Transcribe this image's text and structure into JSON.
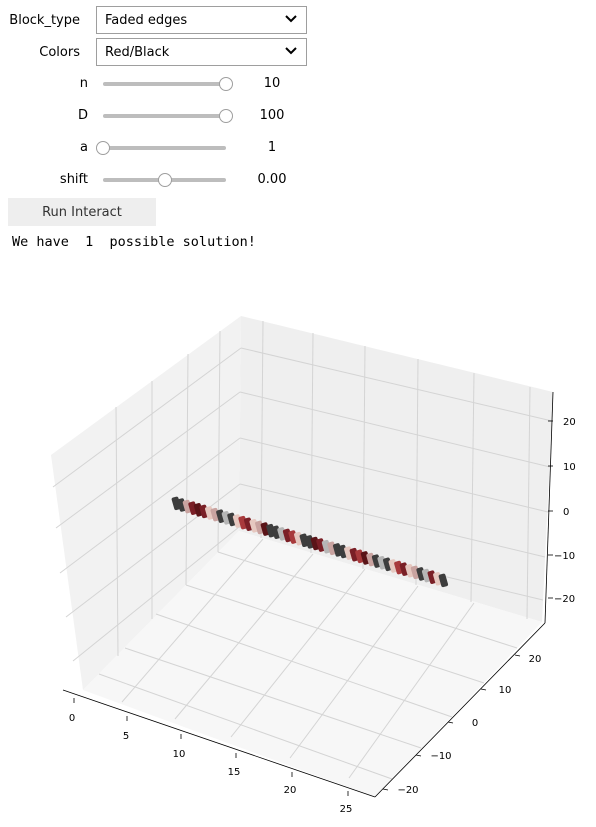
{
  "controls": {
    "block_type": {
      "label": "Block_type",
      "value": "Faded edges"
    },
    "colors": {
      "label": "Colors",
      "value": "Red/Black"
    },
    "sliders": [
      {
        "label": "n",
        "value": "10",
        "fraction": 1.0
      },
      {
        "label": "D",
        "value": "100",
        "fraction": 1.0
      },
      {
        "label": "a",
        "value": "1",
        "fraction": 0.0
      },
      {
        "label": "shift",
        "value": "0.00",
        "fraction": 0.5
      }
    ],
    "run_button": "Run Interact"
  },
  "output": {
    "message": "We have  1  possible solution!"
  },
  "plot": {
    "x_ticks": [
      "0",
      "5",
      "10",
      "15",
      "20",
      "25"
    ],
    "y_ticks": [
      "20",
      "10",
      "0",
      "−10",
      "−20"
    ],
    "z_ticks": [
      "20",
      "10",
      "0",
      "−10",
      "−20"
    ],
    "colors": {
      "pane_left": "#f2f2f2",
      "pane_back": "#efefef",
      "pane_floor": "#f7f7f7",
      "grid": "#d4d4d4",
      "block_palette": [
        "#3d3d3d",
        "#7a1f26",
        "#c9a3a0",
        "#e6c8c0",
        "#a83a3c",
        "#5a1418",
        "#b6b6b6"
      ]
    }
  }
}
